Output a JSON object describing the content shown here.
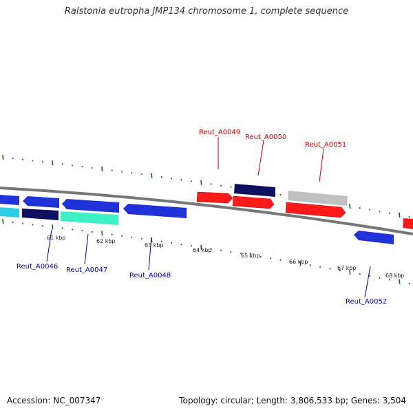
{
  "header": {
    "title": "Ralstonia eutropha JMP134 chromosome 1, complete sequence"
  },
  "footer": {
    "accession": "Accession: NC_007347",
    "summary": "Topology: circular; Length: 3,806,533 bp; Genes: 3,504"
  },
  "colors": {
    "backbone": "#888888",
    "forward_gene": "#ff0000",
    "forward_highlight": "#ff8080",
    "reverse_gene": "#1f32d8",
    "dark_gene": "#101060",
    "cyan_gene": "#2ecde8",
    "aqua_gene": "#3ff0c4",
    "gray_gene": "#c0c0c0",
    "tick": "#116611",
    "forward_label": "#cc0000",
    "reverse_label": "#0000aa"
  },
  "scale_labels": [
    "61 kbp",
    "62 kbp",
    "63 kbp",
    "64 kbp",
    "65 kbp",
    "66 kbp",
    "67 kbp",
    "68 kbp"
  ],
  "gene_labels": [
    {
      "name": "Reut_A0049",
      "strand": "forward"
    },
    {
      "name": "Reut_A0050",
      "strand": "forward"
    },
    {
      "name": "Reut_A0051",
      "strand": "forward"
    },
    {
      "name": "Reut_A0046",
      "strand": "reverse"
    },
    {
      "name": "Reut_A0047",
      "strand": "reverse"
    },
    {
      "name": "Reut_A0048",
      "strand": "reverse"
    },
    {
      "name": "Reut_A0052",
      "strand": "reverse"
    }
  ]
}
